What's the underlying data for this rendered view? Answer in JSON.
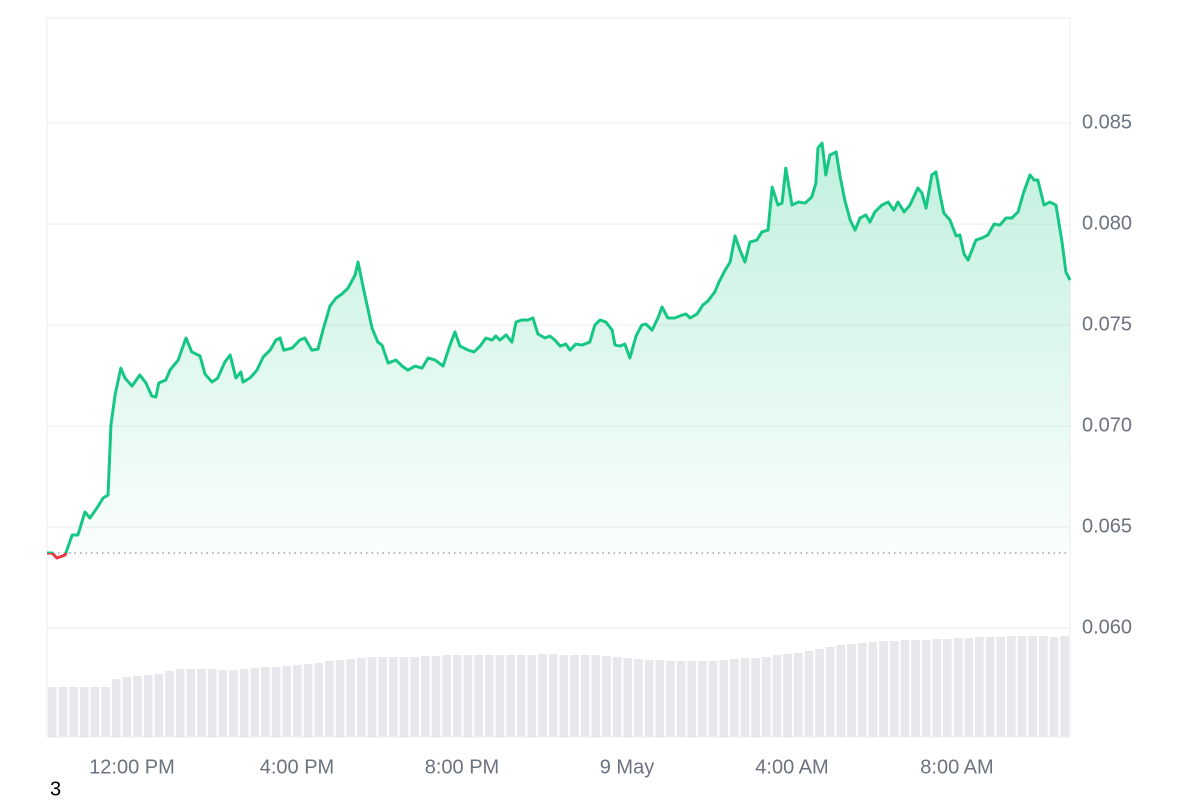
{
  "chart_data": {
    "type": "line",
    "x": [
      9.94,
      10.06,
      10.18,
      10.38,
      10.55,
      10.69,
      10.86,
      10.98,
      11.15,
      11.3,
      11.42,
      11.49,
      11.59,
      11.73,
      11.83,
      12.0,
      12.19,
      12.34,
      12.48,
      12.58,
      12.65,
      12.82,
      12.92,
      13.12,
      13.31,
      13.45,
      13.65,
      13.77,
      13.94,
      14.08,
      14.25,
      14.38,
      14.52,
      14.64,
      14.69,
      14.86,
      15.03,
      15.18,
      15.35,
      15.49,
      15.59,
      15.68,
      15.88,
      16.07,
      16.19,
      16.36,
      16.51,
      16.63,
      16.8,
      16.95,
      17.09,
      17.24,
      17.41,
      17.48,
      17.62,
      17.82,
      17.96,
      18.06,
      18.21,
      18.4,
      18.55,
      18.69,
      18.86,
      19.03,
      19.18,
      19.35,
      19.54,
      19.71,
      19.83,
      19.95,
      20.15,
      20.29,
      20.44,
      20.58,
      20.73,
      20.82,
      20.92,
      21.07,
      21.21,
      21.31,
      21.45,
      21.6,
      21.72,
      21.84,
      22.01,
      22.13,
      22.25,
      22.38,
      22.52,
      22.62,
      22.76,
      22.91,
      23.1,
      23.22,
      23.35,
      23.49,
      23.64,
      23.71,
      23.83,
      23.95,
      24.07,
      24.22,
      24.36,
      24.46,
      24.61,
      24.75,
      24.85,
      24.99,
      25.16,
      25.28,
      25.43,
      25.53,
      25.7,
      25.84,
      25.96,
      26.13,
      26.23,
      26.38,
      26.5,
      26.62,
      26.74,
      26.86,
      26.98,
      27.15,
      27.27,
      27.42,
      27.52,
      27.66,
      27.76,
      27.85,
      28.0,
      28.15,
      28.32,
      28.48,
      28.58,
      28.63,
      28.73,
      28.82,
      28.92,
      29.07,
      29.16,
      29.28,
      29.41,
      29.53,
      29.65,
      29.79,
      29.89,
      30.01,
      30.18,
      30.33,
      30.47,
      30.57,
      30.72,
      30.86,
      31.05,
      31.15,
      31.25,
      31.39,
      31.49,
      31.59,
      31.68,
      31.83,
      31.98,
      32.07,
      32.17,
      32.27,
      32.46,
      32.61,
      32.75,
      32.9,
      33.04,
      33.19,
      33.33,
      33.48,
      33.62,
      33.77,
      33.87,
      33.96,
      34.11,
      34.25,
      34.4,
      34.55,
      34.64,
      34.74
    ],
    "values": [
      0.06372,
      0.06372,
      0.06347,
      0.06362,
      0.06461,
      0.06461,
      0.06575,
      0.06545,
      0.06594,
      0.06644,
      0.06659,
      0.07005,
      0.07154,
      0.07287,
      0.07238,
      0.07198,
      0.07253,
      0.07213,
      0.07149,
      0.07144,
      0.07213,
      0.07228,
      0.07277,
      0.07327,
      0.07436,
      0.07367,
      0.07347,
      0.07258,
      0.07218,
      0.07238,
      0.07317,
      0.07352,
      0.07238,
      0.07268,
      0.07218,
      0.07238,
      0.07277,
      0.07342,
      0.07376,
      0.07426,
      0.07436,
      0.07376,
      0.07386,
      0.07426,
      0.07436,
      0.07376,
      0.07381,
      0.07475,
      0.07594,
      0.07634,
      0.07654,
      0.07683,
      0.07748,
      0.07812,
      0.07673,
      0.07485,
      0.07416,
      0.07401,
      0.07312,
      0.07327,
      0.07297,
      0.07277,
      0.07297,
      0.07287,
      0.07337,
      0.07327,
      0.07297,
      0.07401,
      0.07466,
      0.07396,
      0.07376,
      0.07367,
      0.07396,
      0.07436,
      0.07426,
      0.07446,
      0.07426,
      0.07451,
      0.07416,
      0.07515,
      0.07525,
      0.07525,
      0.07535,
      0.07456,
      0.07436,
      0.07446,
      0.07426,
      0.07396,
      0.07406,
      0.07376,
      0.07406,
      0.07401,
      0.07416,
      0.075,
      0.07525,
      0.07515,
      0.07475,
      0.07401,
      0.07396,
      0.07406,
      0.07337,
      0.07446,
      0.075,
      0.07505,
      0.07475,
      0.07535,
      0.07589,
      0.07535,
      0.07535,
      0.07545,
      0.07555,
      0.07535,
      0.07555,
      0.07599,
      0.07619,
      0.07664,
      0.07713,
      0.07772,
      0.07812,
      0.07941,
      0.07871,
      0.07812,
      0.07911,
      0.07921,
      0.07961,
      0.0797,
      0.08183,
      0.08094,
      0.08104,
      0.08277,
      0.08094,
      0.08109,
      0.08104,
      0.08134,
      0.08203,
      0.08376,
      0.08401,
      0.08243,
      0.08342,
      0.08357,
      0.08243,
      0.08119,
      0.0802,
      0.0797,
      0.0803,
      0.08045,
      0.0801,
      0.0806,
      0.08094,
      0.08109,
      0.08069,
      0.08109,
      0.0806,
      0.08094,
      0.08178,
      0.08154,
      0.08079,
      0.08243,
      0.08258,
      0.08144,
      0.08055,
      0.0802,
      0.07941,
      0.07946,
      0.07852,
      0.07822,
      0.07921,
      0.07931,
      0.07946,
      0.08,
      0.07995,
      0.0803,
      0.0803,
      0.0806,
      0.08159,
      0.08243,
      0.08218,
      0.08218,
      0.08094,
      0.08109,
      0.08094,
      0.07906,
      0.07763,
      0.07723
    ],
    "color": "#16c784",
    "down_color": "#ea3943",
    "baseline": 0.06372,
    "xlim": [
      9.94,
      34.74
    ],
    "xticks": [
      {
        "value": 12,
        "label": "12:00 PM"
      },
      {
        "value": 16,
        "label": "4:00 PM"
      },
      {
        "value": 20,
        "label": "8:00 PM"
      },
      {
        "value": 24,
        "label": "9 May"
      },
      {
        "value": 28,
        "label": "4:00 AM"
      },
      {
        "value": 32,
        "label": "8:00 AM"
      }
    ],
    "ylim": [
      0.05461,
      0.0902
    ],
    "yticks": [
      {
        "value": 0.06,
        "label": "0.060"
      },
      0.065,
      {
        "value": 0.07,
        "label": "0.070"
      },
      0.075,
      {
        "value": 0.08,
        "label": "0.080"
      },
      0.085
    ],
    "grid": true,
    "volume": {
      "color": "#e6e8ec",
      "lim": [
        0,
        120
      ],
      "values": [
        50,
        50,
        50,
        50,
        50,
        50,
        58,
        60,
        61,
        62,
        63,
        66,
        68,
        68,
        68,
        68,
        67,
        67,
        68,
        69,
        70,
        70,
        71,
        72,
        73,
        74,
        76,
        77,
        78,
        79,
        80,
        80,
        80,
        80,
        80,
        81,
        81,
        82,
        82,
        82,
        82,
        82,
        82,
        82,
        82,
        82,
        83,
        83,
        82,
        82,
        82,
        82,
        81,
        80,
        79,
        78,
        77,
        77,
        76,
        76,
        76,
        76,
        76,
        77,
        78,
        79,
        79,
        80,
        82,
        83,
        84,
        86,
        88,
        90,
        92,
        93,
        94,
        95,
        96,
        96,
        97,
        97,
        97,
        98,
        98,
        99,
        99,
        100,
        100,
        100,
        101,
        101,
        101,
        101,
        100,
        101
      ]
    }
  },
  "footer": "3"
}
